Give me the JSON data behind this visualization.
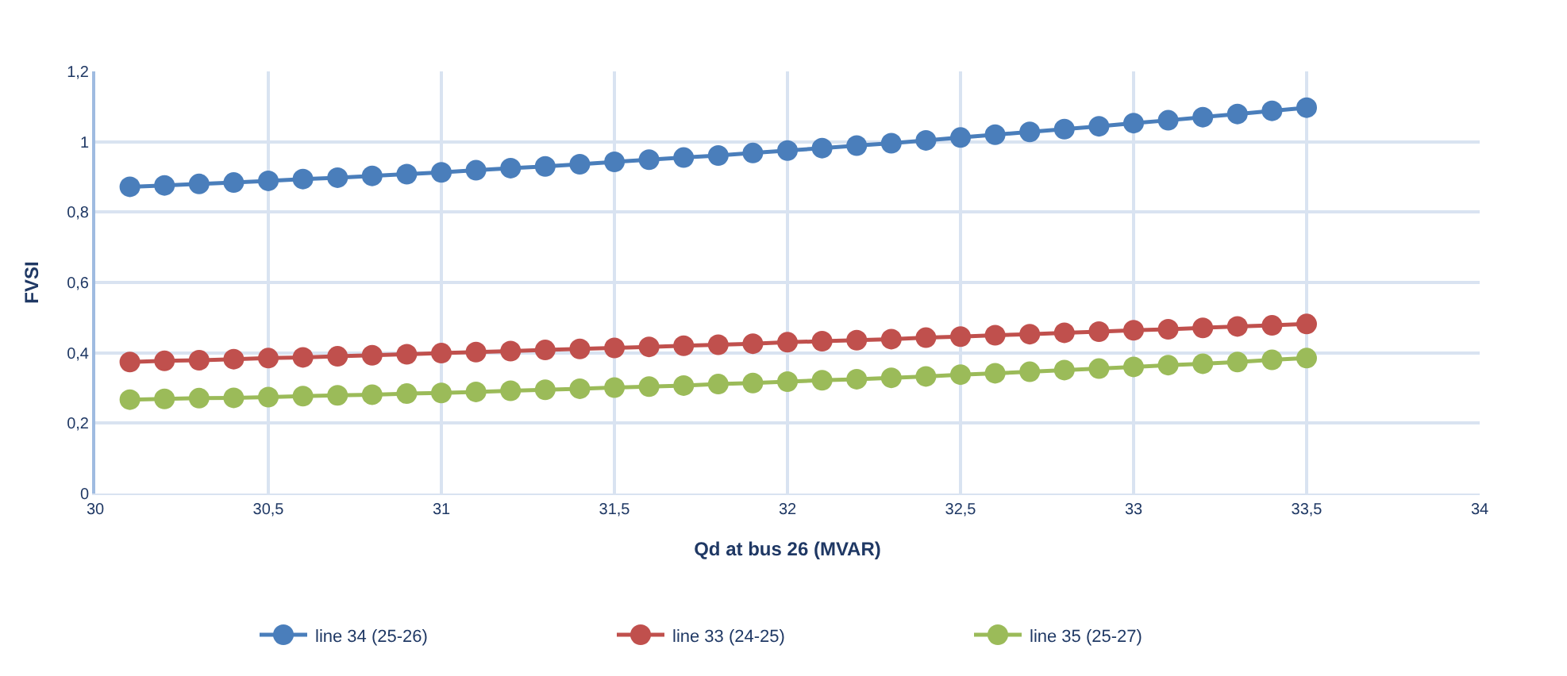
{
  "chart_data": {
    "type": "line",
    "xlabel": "Qd at bus 26 (MVAR)",
    "ylabel": "FVSI",
    "x": [
      30.1,
      30.2,
      30.3,
      30.4,
      30.5,
      30.6,
      30.7,
      30.8,
      30.9,
      31.0,
      31.1,
      31.2,
      31.3,
      31.4,
      31.5,
      31.6,
      31.7,
      31.8,
      31.9,
      32.0,
      32.1,
      32.2,
      32.3,
      32.4,
      32.5,
      32.6,
      32.7,
      32.8,
      32.9,
      33.0,
      33.1,
      33.2,
      33.3,
      33.4,
      33.5
    ],
    "series": [
      {
        "name": "line 34 (25-26)",
        "color": "#4a7ebb",
        "values": [
          0.872,
          0.876,
          0.88,
          0.884,
          0.889,
          0.894,
          0.898,
          0.903,
          0.908,
          0.913,
          0.919,
          0.925,
          0.93,
          0.936,
          0.943,
          0.949,
          0.955,
          0.961,
          0.968,
          0.975,
          0.982,
          0.989,
          0.996,
          1.004,
          1.012,
          1.02,
          1.028,
          1.036,
          1.044,
          1.053,
          1.061,
          1.07,
          1.079,
          1.088,
          1.097
        ]
      },
      {
        "name": "line 33 (24-25)",
        "color": "#c0504d",
        "values": [
          0.374,
          0.377,
          0.379,
          0.382,
          0.385,
          0.387,
          0.39,
          0.393,
          0.396,
          0.399,
          0.402,
          0.405,
          0.408,
          0.411,
          0.414,
          0.417,
          0.42,
          0.423,
          0.426,
          0.43,
          0.433,
          0.436,
          0.439,
          0.443,
          0.446,
          0.45,
          0.453,
          0.457,
          0.46,
          0.464,
          0.467,
          0.471,
          0.475,
          0.478,
          0.482
        ]
      },
      {
        "name": "line 35 (25-27)",
        "color": "#9bbb59",
        "values": [
          0.267,
          0.269,
          0.271,
          0.272,
          0.274,
          0.277,
          0.279,
          0.281,
          0.284,
          0.286,
          0.289,
          0.292,
          0.295,
          0.298,
          0.301,
          0.304,
          0.307,
          0.311,
          0.314,
          0.318,
          0.322,
          0.325,
          0.329,
          0.333,
          0.338,
          0.342,
          0.346,
          0.351,
          0.355,
          0.36,
          0.365,
          0.369,
          0.374,
          0.38,
          0.385
        ]
      }
    ],
    "xlim": [
      30,
      34
    ],
    "xticks": [
      30,
      {
        "value": 30.5,
        "label": "30,5"
      },
      31,
      {
        "value": 31.5,
        "label": "31,5"
      },
      32,
      {
        "value": 32.5,
        "label": "32,5"
      },
      33,
      {
        "value": 33.5,
        "label": "33,5"
      },
      34
    ],
    "ylim": [
      0,
      1.2
    ],
    "yticks": [
      0,
      {
        "value": 0.2,
        "label": "0,2"
      },
      {
        "value": 0.4,
        "label": "0,4"
      },
      {
        "value": 0.6,
        "label": "0,6"
      },
      {
        "value": 0.8,
        "label": "0,8"
      },
      1,
      {
        "value": 1.2,
        "label": "1,2"
      }
    ],
    "grid": true,
    "legend": "bottom",
    "marker": "circle",
    "line_style": "solid"
  }
}
